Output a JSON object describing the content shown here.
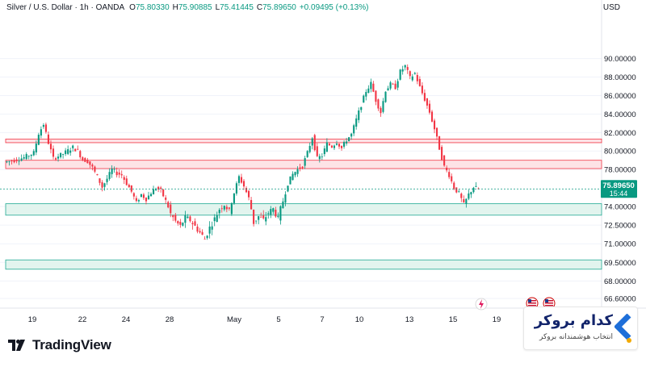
{
  "header": {
    "symbol": "Silver / U.S. Dollar · 1h · OANDA",
    "o_label": "O",
    "o_value": "75.80330",
    "h_label": "H",
    "h_value": "75.90885",
    "l_label": "L",
    "l_value": "75.41445",
    "c_label": "C",
    "c_value": "75.89650",
    "change": "+0.09495 (+0.13%)"
  },
  "currency": "USD",
  "price_badge": {
    "price": "75.89650",
    "countdown": "15:44"
  },
  "branding": {
    "tradingview": "TradingView",
    "broker_name": "کدام بروکر",
    "broker_tagline": "انتخاب هوشمندانه بروکر"
  },
  "colors": {
    "up": "#089981",
    "down": "#f23645",
    "resistance_fill": "#fde3e6",
    "support_fill": "#e2f4ee",
    "badge": "#089981"
  },
  "chart_data": {
    "type": "candlestick",
    "x_tick_labels": [
      "19",
      "22",
      "24",
      "28",
      "May",
      "5",
      "7",
      "10",
      "13",
      "15",
      "19"
    ],
    "y_tick_labels": [
      "90.00000",
      "88.00000",
      "86.00000",
      "84.00000",
      "82.00000",
      "80.00000",
      "78.00000",
      "74.00000",
      "72.50000",
      "71.00000",
      "69.50000",
      "68.00000",
      "66.60000"
    ],
    "current_price": 75.8965,
    "resistance_zones": [
      [
        80.9,
        81.3
      ],
      [
        78.1,
        79.0
      ]
    ],
    "support_zones": [
      [
        73.3,
        74.3
      ],
      [
        68.95,
        69.7
      ]
    ],
    "price_path": [
      [
        0,
        78.8
      ],
      [
        4,
        79.0
      ],
      [
        8,
        79.3
      ],
      [
        12,
        79.8
      ],
      [
        14,
        81.9
      ],
      [
        16,
        82.9
      ],
      [
        18,
        80.9
      ],
      [
        20,
        79.2
      ],
      [
        24,
        79.7
      ],
      [
        28,
        80.4
      ],
      [
        30,
        80.0
      ],
      [
        32,
        79.1
      ],
      [
        34,
        78.9
      ],
      [
        36,
        78.2
      ],
      [
        38,
        77.2
      ],
      [
        40,
        76.1
      ],
      [
        42,
        77.0
      ],
      [
        44,
        78.0
      ],
      [
        46,
        77.6
      ],
      [
        48,
        77.4
      ],
      [
        50,
        76.5
      ],
      [
        52,
        75.6
      ],
      [
        54,
        74.4
      ],
      [
        56,
        75.3
      ],
      [
        58,
        74.8
      ],
      [
        60,
        75.5
      ],
      [
        62,
        76.0
      ],
      [
        64,
        75.7
      ],
      [
        66,
        74.6
      ],
      [
        68,
        73.4
      ],
      [
        70,
        72.8
      ],
      [
        72,
        72.4
      ],
      [
        74,
        73.1
      ],
      [
        76,
        72.9
      ],
      [
        78,
        72.4
      ],
      [
        80,
        71.9
      ],
      [
        82,
        71.4
      ],
      [
        84,
        72.3
      ],
      [
        86,
        73.0
      ],
      [
        88,
        73.8
      ],
      [
        90,
        74.2
      ],
      [
        92,
        73.6
      ],
      [
        94,
        75.5
      ],
      [
        96,
        77.2
      ],
      [
        98,
        76.2
      ],
      [
        100,
        74.9
      ],
      [
        102,
        72.7
      ],
      [
        104,
        73.2
      ],
      [
        106,
        72.9
      ],
      [
        108,
        73.5
      ],
      [
        110,
        73.8
      ],
      [
        112,
        73.0
      ],
      [
        114,
        74.6
      ],
      [
        116,
        76.5
      ],
      [
        118,
        77.5
      ],
      [
        120,
        78.0
      ],
      [
        122,
        78.4
      ],
      [
        124,
        79.8
      ],
      [
        126,
        81.5
      ],
      [
        128,
        79.2
      ],
      [
        130,
        79.5
      ],
      [
        132,
        80.8
      ],
      [
        134,
        80.5
      ],
      [
        136,
        81.0
      ],
      [
        138,
        80.3
      ],
      [
        140,
        81.2
      ],
      [
        142,
        81.8
      ],
      [
        144,
        83.4
      ],
      [
        146,
        85.0
      ],
      [
        148,
        86.5
      ],
      [
        150,
        87.3
      ],
      [
        152,
        85.5
      ],
      [
        154,
        84.2
      ],
      [
        156,
        86.6
      ],
      [
        158,
        87.2
      ],
      [
        160,
        86.9
      ],
      [
        162,
        88.6
      ],
      [
        164,
        89.2
      ],
      [
        166,
        87.9
      ],
      [
        168,
        88.4
      ],
      [
        170,
        86.9
      ],
      [
        172,
        85.6
      ],
      [
        174,
        84.2
      ],
      [
        176,
        82.4
      ],
      [
        178,
        80.3
      ],
      [
        180,
        78.3
      ],
      [
        182,
        77.4
      ],
      [
        184,
        76.0
      ],
      [
        186,
        75.4
      ],
      [
        188,
        74.2
      ],
      [
        190,
        75.3
      ],
      [
        192,
        76.1
      ],
      [
        194,
        75.89
      ]
    ]
  }
}
